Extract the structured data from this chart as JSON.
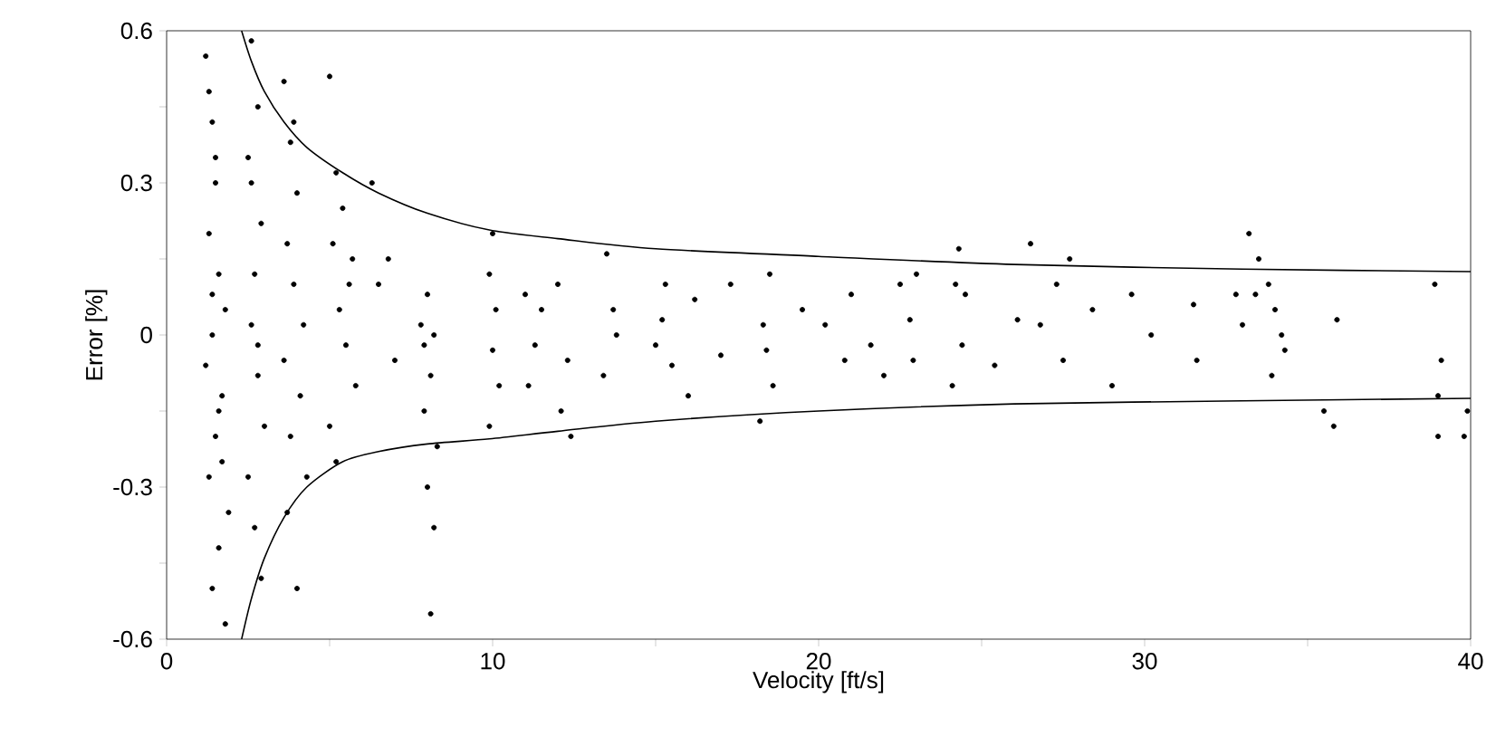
{
  "chart_data": {
    "type": "scatter",
    "xlabel": "Velocity [ft/s]",
    "ylabel": "Error [%]",
    "xlim": [
      0,
      40
    ],
    "ylim": [
      -0.6,
      0.6
    ],
    "xticks": [
      0,
      {
        "value": 5,
        "label": null
      },
      10,
      {
        "value": 15,
        "label": null
      },
      20,
      {
        "value": 25,
        "label": null
      },
      30,
      {
        "value": 35,
        "label": null
      },
      40
    ],
    "yticks": [
      -0.6,
      {
        "value": -0.45,
        "label": null
      },
      -0.3,
      {
        "value": -0.15,
        "label": null
      },
      0,
      {
        "value": 0.15,
        "label": null
      },
      0.3,
      {
        "value": 0.45,
        "label": null
      },
      0.6
    ],
    "grid": false,
    "series": [
      {
        "color": "#000000",
        "marker": "circle",
        "x": [
          1.2,
          1.4,
          1.5,
          1.3,
          1.6,
          1.8,
          1.4,
          1.2,
          1.7,
          1.5,
          1.3,
          1.9,
          1.6,
          1.4,
          1.8,
          1.5,
          1.3,
          1.7,
          1.6,
          1.4,
          2.6,
          2.8,
          2.5,
          2.9,
          2.7,
          2.6,
          2.8,
          3.0,
          2.5,
          2.7,
          2.9,
          2.6,
          2.8,
          3.6,
          3.8,
          4.0,
          3.7,
          3.9,
          4.2,
          3.6,
          4.1,
          3.8,
          4.3,
          3.7,
          4.0,
          3.9,
          5.0,
          5.2,
          5.4,
          5.1,
          5.6,
          5.3,
          5.5,
          5.8,
          5.0,
          5.2,
          5.7,
          6.3,
          6.5,
          7.0,
          6.8,
          7.9,
          8.0,
          8.2,
          8.1,
          7.9,
          8.3,
          8.0,
          8.2,
          8.1,
          7.8,
          9.9,
          10.1,
          10.0,
          10.2,
          9.9,
          10.0,
          11.0,
          11.3,
          11.1,
          11.5,
          12.0,
          12.3,
          12.1,
          12.4,
          13.5,
          13.7,
          13.4,
          13.8,
          15.0,
          15.3,
          15.2,
          15.5,
          16.0,
          16.2,
          17.0,
          17.3,
          18.3,
          18.5,
          18.4,
          18.6,
          18.2,
          19.5,
          20.2,
          20.8,
          21.0,
          21.6,
          22.0,
          22.5,
          22.8,
          22.9,
          23.0,
          24.1,
          24.3,
          24.5,
          24.4,
          24.2,
          25.4,
          26.1,
          26.5,
          26.8,
          27.3,
          27.5,
          27.7,
          28.4,
          29.0,
          29.6,
          30.2,
          31.5,
          31.6,
          32.8,
          33.0,
          33.2,
          33.5,
          33.8,
          34.0,
          34.2,
          34.3,
          33.4,
          33.9,
          35.5,
          35.8,
          35.9,
          38.9,
          39.0,
          39.1,
          39.9,
          39.8,
          39.0
        ],
        "values": [
          0.55,
          0.42,
          0.3,
          0.2,
          0.12,
          0.05,
          0.0,
          -0.06,
          -0.12,
          -0.2,
          -0.28,
          -0.35,
          -0.42,
          -0.5,
          -0.57,
          0.35,
          0.48,
          -0.25,
          -0.15,
          0.08,
          0.58,
          0.45,
          0.35,
          0.22,
          0.12,
          0.02,
          -0.08,
          -0.18,
          -0.28,
          -0.38,
          -0.48,
          0.3,
          -0.02,
          0.5,
          0.38,
          0.28,
          0.18,
          0.1,
          0.02,
          -0.05,
          -0.12,
          -0.2,
          -0.28,
          -0.35,
          -0.5,
          0.42,
          0.51,
          0.32,
          0.25,
          0.18,
          0.1,
          0.05,
          -0.02,
          -0.1,
          -0.18,
          -0.25,
          0.15,
          0.3,
          0.1,
          -0.05,
          0.15,
          -0.02,
          0.08,
          0.0,
          -0.08,
          -0.15,
          -0.22,
          -0.3,
          -0.38,
          -0.55,
          0.02,
          0.12,
          0.05,
          -0.03,
          -0.1,
          -0.18,
          0.2,
          0.08,
          -0.02,
          -0.1,
          0.05,
          0.1,
          -0.05,
          -0.15,
          -0.2,
          0.16,
          0.05,
          -0.08,
          0.0,
          -0.02,
          0.1,
          0.03,
          -0.06,
          -0.12,
          0.07,
          -0.04,
          0.1,
          0.02,
          0.12,
          -0.03,
          -0.1,
          -0.17,
          0.05,
          0.02,
          -0.05,
          0.08,
          -0.02,
          -0.08,
          0.1,
          0.03,
          -0.05,
          0.12,
          -0.1,
          0.17,
          0.08,
          -0.02,
          0.1,
          -0.06,
          0.03,
          0.18,
          0.02,
          0.1,
          -0.05,
          0.15,
          0.05,
          -0.1,
          0.08,
          0.0,
          0.06,
          -0.05,
          0.08,
          0.02,
          0.2,
          0.15,
          0.1,
          0.05,
          0.0,
          -0.03,
          0.08,
          -0.08,
          -0.15,
          -0.18,
          0.03,
          0.1,
          -0.12,
          -0.05,
          -0.15,
          -0.2,
          -0.2
        ]
      },
      {
        "type": "line",
        "color": "#000000",
        "marker": "none",
        "line_style": "solid",
        "x": [
          2.3,
          2.6,
          3.0,
          3.6,
          4.3,
          5.4,
          6.5,
          8.0,
          9.9,
          12.0,
          15.0,
          20.0,
          26.0,
          33.0,
          40.0
        ],
        "values": [
          0.6,
          0.54,
          0.48,
          0.42,
          0.37,
          0.32,
          0.28,
          0.24,
          0.207,
          0.19,
          0.17,
          0.155,
          0.139,
          0.13,
          0.125
        ]
      },
      {
        "type": "line",
        "color": "#000000",
        "marker": "none",
        "line_style": "solid",
        "x": [
          2.3,
          2.6,
          3.0,
          3.6,
          4.3,
          5.4,
          6.5,
          8.0,
          9.9,
          12.0,
          15.0,
          20.0,
          26.0,
          33.0,
          40.0
        ],
        "values": [
          -0.6,
          -0.52,
          -0.44,
          -0.36,
          -0.3,
          -0.25,
          -0.23,
          -0.215,
          -0.205,
          -0.19,
          -0.17,
          -0.15,
          -0.136,
          -0.13,
          -0.125
        ]
      }
    ]
  }
}
